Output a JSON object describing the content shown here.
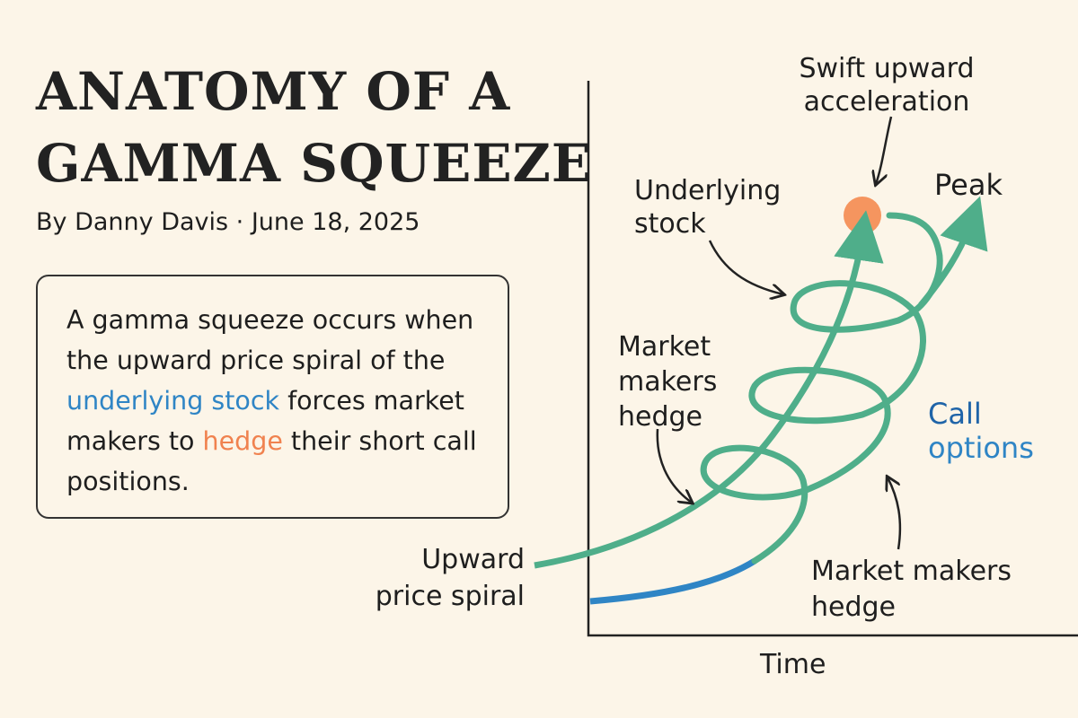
{
  "title_line1": "ANATOMY OF A",
  "title_line2": "GAMMA SQUEEZE",
  "byline": "By Danny Davis · June 18, 2025",
  "summary": {
    "part1": "A gamma squeeze occurs when the upward price spiral of the ",
    "highlight1": "underlying stock",
    "part2": " forces market makers to ",
    "highlight2": "hedge",
    "part3": " their short call positions."
  },
  "labels": {
    "swift": "Swift upward acceleration",
    "peak": "Peak",
    "underlying": "Underlying stock",
    "mm_left": "Market makers hedge",
    "call_options_1": "Call",
    "call_options_2": "options",
    "upward": "Upward price spiral",
    "mm_right": "Market makers hedge",
    "time_axis": "Time"
  },
  "colors": {
    "spiral": "#4fae8a",
    "blue": "#2f85c5",
    "orange": "#f5955f",
    "ink": "#222222"
  }
}
